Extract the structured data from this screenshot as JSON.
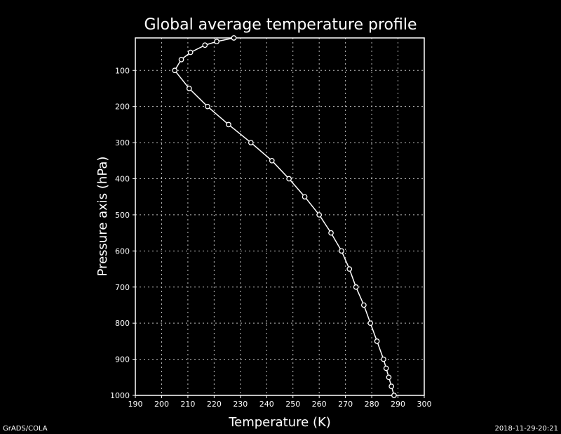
{
  "chart_data": {
    "type": "line",
    "title": "Global average temperature profile",
    "xlabel": "Temperature (K)",
    "ylabel": "Pressure axis (hPa)",
    "xlim": [
      190,
      300
    ],
    "ylim": [
      1000,
      10
    ],
    "y_inverted": true,
    "grid": true,
    "x_ticks": [
      190,
      200,
      210,
      220,
      230,
      240,
      250,
      260,
      270,
      280,
      290,
      300
    ],
    "y_ticks": [
      100,
      200,
      300,
      400,
      500,
      600,
      700,
      800,
      900,
      1000
    ],
    "series": [
      {
        "points": [
          {
            "x": 227.5,
            "y": 10
          },
          {
            "x": 221.0,
            "y": 20
          },
          {
            "x": 216.5,
            "y": 30
          },
          {
            "x": 211.0,
            "y": 50
          },
          {
            "x": 207.5,
            "y": 70
          },
          {
            "x": 205.0,
            "y": 100
          },
          {
            "x": 210.5,
            "y": 150
          },
          {
            "x": 217.5,
            "y": 200
          },
          {
            "x": 225.5,
            "y": 250
          },
          {
            "x": 234.0,
            "y": 300
          },
          {
            "x": 242.0,
            "y": 350
          },
          {
            "x": 248.5,
            "y": 400
          },
          {
            "x": 254.5,
            "y": 450
          },
          {
            "x": 260.0,
            "y": 500
          },
          {
            "x": 264.5,
            "y": 550
          },
          {
            "x": 268.5,
            "y": 600
          },
          {
            "x": 271.5,
            "y": 650
          },
          {
            "x": 274.0,
            "y": 700
          },
          {
            "x": 277.0,
            "y": 750
          },
          {
            "x": 279.5,
            "y": 800
          },
          {
            "x": 282.0,
            "y": 850
          },
          {
            "x": 284.5,
            "y": 900
          },
          {
            "x": 285.5,
            "y": 925
          },
          {
            "x": 286.5,
            "y": 950
          },
          {
            "x": 287.5,
            "y": 975
          },
          {
            "x": 288.5,
            "y": 1000
          }
        ]
      }
    ]
  },
  "footer": {
    "left": "GrADS/COLA",
    "right": "2018-11-29-20:21"
  },
  "colors": {
    "background": "#000000",
    "foreground": "#ffffff",
    "grid": "#bfbfbf"
  }
}
